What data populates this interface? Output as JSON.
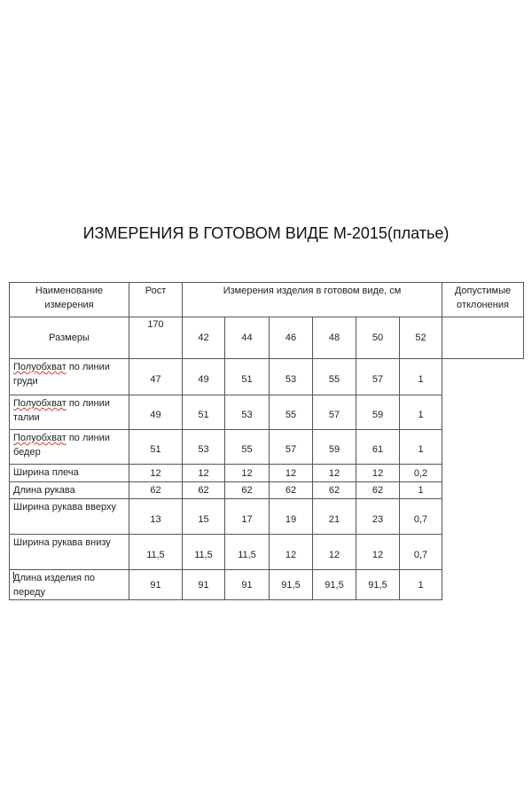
{
  "title": "ИЗМЕРЕНИЯ В ГОТОВОМ ВИДЕ М-2015(платье)",
  "header": {
    "name": "Наименование измерения",
    "height": "Рост",
    "measurements": "Измерения изделия в готовом виде, см",
    "tolerance": "Допустимые отклонения"
  },
  "sizes_label": "Размеры",
  "sizes": [
    "42",
    "44",
    "46",
    "48",
    "50",
    "52"
  ],
  "height_value": "170",
  "rows": [
    {
      "name_a": "Полуобхват",
      "name_b": " по линии груди",
      "values": [
        "47",
        "49",
        "51",
        "53",
        "55",
        "57"
      ],
      "tolerance": "1"
    },
    {
      "name_a": "Полуобхват",
      "name_b": " по линии талии",
      "values": [
        "49",
        "51",
        "53",
        "55",
        "57",
        "59"
      ],
      "tolerance": "1"
    },
    {
      "name_a": "Полуобхват",
      "name_b": " по линии бедер",
      "values": [
        "51",
        "53",
        "55",
        "57",
        "59",
        "61"
      ],
      "tolerance": "1"
    },
    {
      "name_a": "",
      "name_b": "Ширина плеча",
      "values": [
        "12",
        "12",
        "12",
        "12",
        "12",
        "12"
      ],
      "tolerance": "0,2"
    },
    {
      "name_a": "",
      "name_b": "Длина рукава",
      "values": [
        "62",
        "62",
        "62",
        "62",
        "62",
        "62"
      ],
      "tolerance": "1"
    },
    {
      "name_a": "",
      "name_b": "Ширина рукава вверху",
      "values": [
        "13",
        "15",
        "17",
        "19",
        "21",
        "23"
      ],
      "tolerance": "0,7"
    },
    {
      "name_a": "",
      "name_b": "Ширина рукава внизу",
      "values": [
        "11,5",
        "11,5",
        "11,5",
        "12",
        "12",
        "12"
      ],
      "tolerance": "0,7"
    },
    {
      "name_a": "",
      "name_b": "Длина изделия по переду",
      "values": [
        "91",
        "91",
        "91",
        "91,5",
        "91,5",
        "91,5"
      ],
      "tolerance": "1"
    }
  ]
}
